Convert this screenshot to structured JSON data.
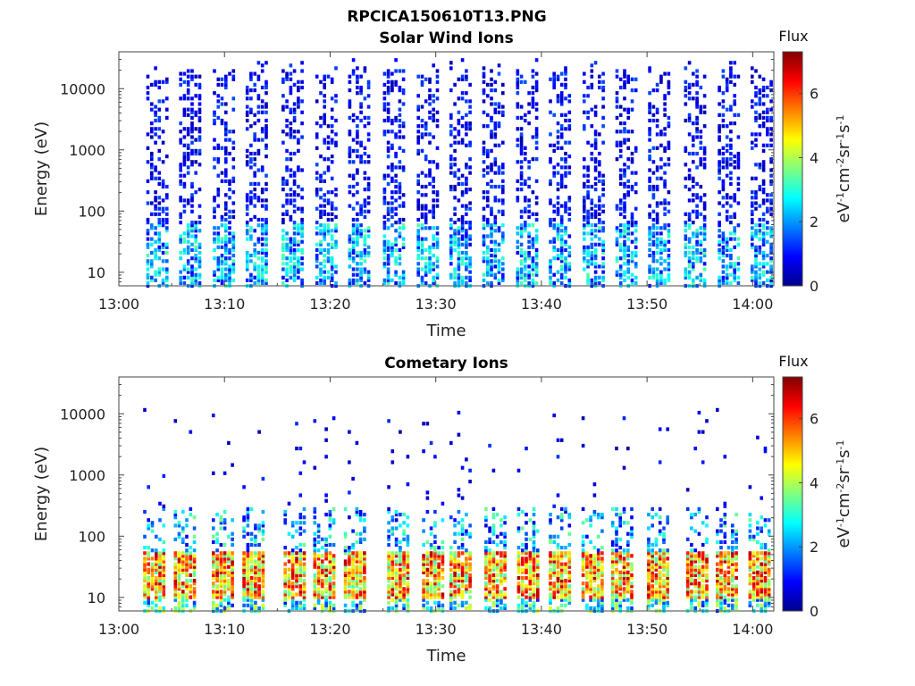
{
  "figure": {
    "title": "RPCICA150610T13.PNG"
  },
  "colorbar": {
    "label_html": "eV<sup>-1</sup>cm<sup>-2</sup>sr<sup>-1</sup>s<sup>-1</sup>",
    "title": "Flux",
    "range": [
      0,
      7.3
    ],
    "ticks": [
      0,
      2,
      4,
      6
    ],
    "colormap": "jet"
  },
  "chart_data": [
    {
      "type": "heatmap",
      "title": "Solar Wind Ions",
      "xlabel": "Time",
      "ylabel": "Energy (eV)",
      "xlim": [
        "13:00",
        "14:02"
      ],
      "xticks": [
        "13:00",
        "13:10",
        "13:20",
        "13:30",
        "13:40",
        "13:50",
        "14:00"
      ],
      "ylim": [
        6,
        40000
      ],
      "yscale": "log",
      "yticks": [
        10,
        100,
        1000,
        10000
      ],
      "ytick_labels": [
        "10",
        "100",
        "1000",
        "10000"
      ],
      "zlabel": "Flux",
      "sweep_times_min": [
        3.5,
        6.6,
        9.8,
        12.9,
        16.3,
        19.5,
        22.6,
        25.9,
        29.1,
        32.2,
        35.3,
        38.5,
        41.6,
        44.8,
        47.9,
        51.0,
        54.4,
        57.6,
        60.7
      ],
      "description_of_pattern": "Sparse low-flux (0-2) signal spanning 10 eV to ~20000 eV in each sweep; moderate flux (2-4) concentrated below ~100 eV"
    },
    {
      "type": "heatmap",
      "title": "Cometary Ions",
      "xlabel": "Time",
      "ylabel": "Energy (eV)",
      "xlim": [
        "13:00",
        "14:02"
      ],
      "xticks": [
        "13:00",
        "13:10",
        "13:20",
        "13:30",
        "13:40",
        "13:50",
        "14:00"
      ],
      "ylim": [
        6,
        40000
      ],
      "yscale": "log",
      "yticks": [
        10,
        100,
        1000,
        10000
      ],
      "ytick_labels": [
        "10",
        "100",
        "1000",
        "10000"
      ],
      "zlabel": "Flux",
      "sweep_times_min": [
        3.2,
        6.1,
        9.7,
        12.6,
        16.5,
        19.3,
        22.2,
        26.3,
        29.6,
        32.2,
        35.5,
        38.6,
        41.6,
        44.7,
        47.5,
        50.9,
        54.6,
        57.4,
        60.5
      ],
      "description_of_pattern": "High flux (4-7) concentrated between ~10 eV and ~50 eV; sparse low-flux points extending up to ~10000 eV"
    }
  ]
}
